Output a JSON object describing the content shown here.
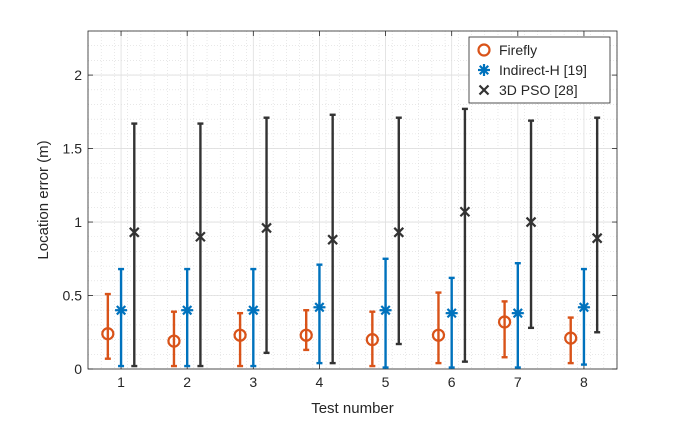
{
  "chart_data": {
    "type": "errorbar",
    "xlabel": "Test number",
    "ylabel": "Location error (m)",
    "xlim": [
      0.5,
      8.5
    ],
    "ylim": [
      0,
      2.3
    ],
    "x_ticks": [
      1,
      2,
      3,
      4,
      5,
      6,
      7,
      8
    ],
    "y_ticks": [
      0,
      0.5,
      1,
      1.5,
      2
    ],
    "y_tick_labels": [
      "0",
      "0.5",
      "1",
      "1.5",
      "2"
    ],
    "grid": true,
    "minor_grid": true,
    "legend_position": "top-right",
    "series": [
      {
        "name": "Firefly",
        "color": "#d95319",
        "marker": "circle",
        "x_offset": -0.2,
        "values": [
          0.24,
          0.19,
          0.23,
          0.23,
          0.2,
          0.23,
          0.32,
          0.21
        ],
        "lower": [
          0.07,
          0.02,
          0.02,
          0.13,
          0.02,
          0.04,
          0.08,
          0.04
        ],
        "upper": [
          0.51,
          0.39,
          0.38,
          0.4,
          0.39,
          0.52,
          0.46,
          0.35
        ]
      },
      {
        "name": "Indirect-H [19]",
        "color": "#0072bd",
        "marker": "asterisk",
        "x_offset": 0,
        "values": [
          0.4,
          0.4,
          0.4,
          0.42,
          0.4,
          0.38,
          0.38,
          0.42
        ],
        "lower": [
          0.02,
          0.02,
          0.02,
          0.04,
          0.01,
          0.01,
          0.01,
          0.03
        ],
        "upper": [
          0.68,
          0.68,
          0.68,
          0.71,
          0.75,
          0.62,
          0.72,
          0.68
        ]
      },
      {
        "name": "3D PSO [28]",
        "color": "#333333",
        "marker": "x",
        "x_offset": 0.2,
        "values": [
          0.93,
          0.9,
          0.96,
          0.88,
          0.93,
          1.07,
          1.0,
          0.89
        ],
        "lower": [
          0.02,
          0.02,
          0.11,
          0.04,
          0.17,
          0.05,
          0.28,
          0.25
        ],
        "upper": [
          1.67,
          1.67,
          1.71,
          1.73,
          1.71,
          1.77,
          1.69,
          1.71
        ]
      }
    ]
  }
}
